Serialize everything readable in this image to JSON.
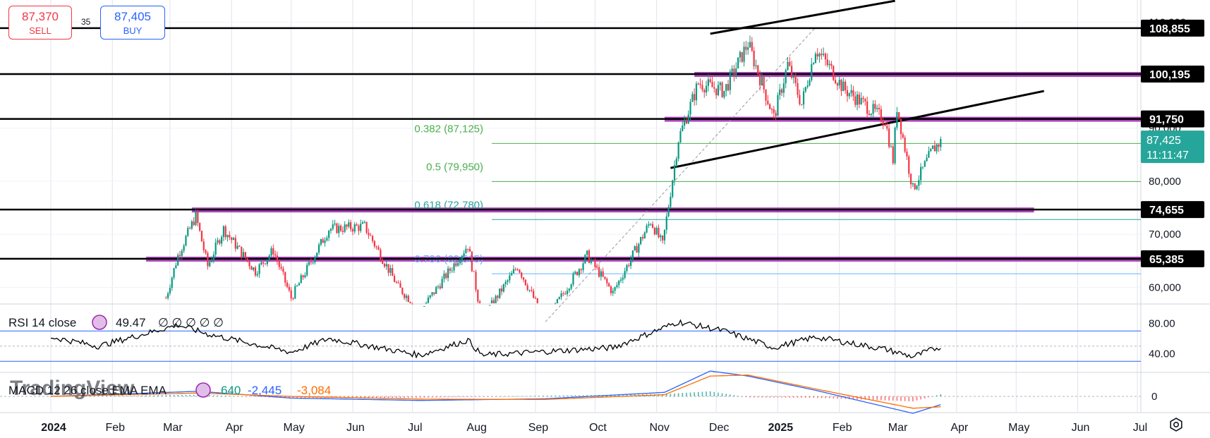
{
  "trade": {
    "sell_price": "87,370",
    "sell_label": "SELL",
    "spread": "35",
    "buy_price": "87,405",
    "buy_label": "BUY"
  },
  "colors": {
    "up": "#089981",
    "down": "#f23645",
    "level_line": "#000000",
    "zone": "#9c27b0",
    "fib": "#4caf50",
    "rsi": "#000000",
    "rsi_band": "#2962ff",
    "macd": "#2962ff",
    "signal": "#ff6d00",
    "current_price_bg": "#26a69a"
  },
  "price_axis": {
    "ticks": [
      "60,000",
      "70,000",
      "80,000",
      "90,000",
      "100,000",
      "110,000"
    ]
  },
  "rsi_axis": {
    "ticks": [
      "80.00",
      "40.00"
    ]
  },
  "macd_axis": {
    "ticks": [
      "0"
    ]
  },
  "indicators": {
    "rsi_label": "RSI 14 close",
    "rsi_value": "49.47",
    "rsi_extra": "∅ ∅ ∅ ∅ ∅",
    "macd_label": "MACD 12 26 close EMA EMA",
    "macd_hist": "640",
    "macd_line": "-2,445",
    "macd_signal": "-3,084",
    "watermark": "TradingView"
  },
  "chart_data": {
    "type": "candlestick",
    "x_axis": [
      "2024",
      "Feb",
      "Mar",
      "Apr",
      "May",
      "Jun",
      "Jul",
      "Aug",
      "Sep",
      "Oct",
      "Nov",
      "Dec",
      "2025",
      "Feb",
      "Mar",
      "Apr",
      "May",
      "Jun",
      "Jul"
    ],
    "ylim": [
      57000,
      111500
    ],
    "horizontal_levels": [
      108855,
      100195,
      91750,
      74655,
      65385
    ],
    "level_labels": [
      "108,855",
      "100,195",
      "91,750",
      "74,655",
      "65,385"
    ],
    "current_price": "87,425",
    "countdown": "11:11:47",
    "fib_levels": [
      {
        "label": "0.382 (87,125)",
        "value": 87125
      },
      {
        "label": "0.5 (79,950)",
        "value": 79950
      },
      {
        "label": "0.618 (72,780)",
        "value": 72780
      },
      {
        "label": "0.786 (62,565)",
        "value": 62565
      }
    ],
    "price_path": [
      {
        "date": "2024-02-28",
        "close": 58000
      },
      {
        "date": "2024-03-05",
        "close": 66000
      },
      {
        "date": "2024-03-14",
        "close": 73500
      },
      {
        "date": "2024-03-20",
        "close": 64000
      },
      {
        "date": "2024-03-28",
        "close": 71000
      },
      {
        "date": "2024-04-13",
        "close": 63000
      },
      {
        "date": "2024-04-22",
        "close": 67000
      },
      {
        "date": "2024-05-01",
        "close": 58000
      },
      {
        "date": "2024-05-20",
        "close": 71000
      },
      {
        "date": "2024-06-07",
        "close": 71500
      },
      {
        "date": "2024-06-24",
        "close": 60000
      },
      {
        "date": "2024-07-05",
        "close": 55500
      },
      {
        "date": "2024-07-29",
        "close": 68000
      },
      {
        "date": "2024-08-05",
        "close": 54000
      },
      {
        "date": "2024-08-23",
        "close": 64000
      },
      {
        "date": "2024-09-06",
        "close": 53500
      },
      {
        "date": "2024-09-27",
        "close": 66000
      },
      {
        "date": "2024-10-10",
        "close": 59000
      },
      {
        "date": "2024-10-29",
        "close": 72500
      },
      {
        "date": "2024-11-04",
        "close": 68000
      },
      {
        "date": "2024-11-12",
        "close": 88000
      },
      {
        "date": "2024-11-22",
        "close": 98500
      },
      {
        "date": "2024-12-05",
        "close": 97000
      },
      {
        "date": "2024-12-17",
        "close": 106000
      },
      {
        "date": "2024-12-30",
        "close": 92000
      },
      {
        "date": "2025-01-06",
        "close": 102000
      },
      {
        "date": "2025-01-13",
        "close": 94500
      },
      {
        "date": "2025-01-20",
        "close": 105000
      },
      {
        "date": "2025-01-27",
        "close": 101500
      },
      {
        "date": "2025-02-03",
        "close": 97500
      },
      {
        "date": "2025-02-24",
        "close": 91500
      },
      {
        "date": "2025-02-28",
        "close": 84000
      },
      {
        "date": "2025-03-02",
        "close": 94000
      },
      {
        "date": "2025-03-10",
        "close": 78500
      },
      {
        "date": "2025-03-20",
        "close": 86000
      },
      {
        "date": "2025-03-24",
        "close": 87425
      }
    ],
    "rsi_path": [
      {
        "date": "2024-01-01",
        "value": 62
      },
      {
        "date": "2024-01-25",
        "value": 50
      },
      {
        "date": "2024-03-05",
        "value": 78
      },
      {
        "date": "2024-03-20",
        "value": 66
      },
      {
        "date": "2024-05-01",
        "value": 42
      },
      {
        "date": "2024-05-20",
        "value": 60
      },
      {
        "date": "2024-07-05",
        "value": 38
      },
      {
        "date": "2024-07-29",
        "value": 58
      },
      {
        "date": "2024-08-05",
        "value": 38
      },
      {
        "date": "2024-10-10",
        "value": 48
      },
      {
        "date": "2024-11-12",
        "value": 82
      },
      {
        "date": "2024-12-05",
        "value": 70
      },
      {
        "date": "2024-12-30",
        "value": 48
      },
      {
        "date": "2025-01-20",
        "value": 62
      },
      {
        "date": "2025-02-24",
        "value": 46
      },
      {
        "date": "2025-03-10",
        "value": 36
      },
      {
        "date": "2025-03-24",
        "value": 49.47
      }
    ],
    "macd_path": [
      {
        "date": "2024-01-01",
        "macd": 0,
        "signal": 0
      },
      {
        "date": "2024-03-15",
        "macd": 1500,
        "signal": 1000
      },
      {
        "date": "2024-05-01",
        "macd": -500,
        "signal": 0
      },
      {
        "date": "2024-07-05",
        "macd": -1200,
        "signal": -800
      },
      {
        "date": "2024-09-06",
        "macd": -700,
        "signal": -900
      },
      {
        "date": "2024-11-05",
        "macd": 1200,
        "signal": 500
      },
      {
        "date": "2024-11-28",
        "macd": 7500,
        "signal": 6000
      },
      {
        "date": "2024-12-17",
        "macd": 6000,
        "signal": 6300
      },
      {
        "date": "2025-01-20",
        "macd": 1800,
        "signal": 2200
      },
      {
        "date": "2025-03-10",
        "macd": -5000,
        "signal": -3500
      },
      {
        "date": "2025-03-24",
        "macd": -2445,
        "signal": -3084
      }
    ]
  }
}
